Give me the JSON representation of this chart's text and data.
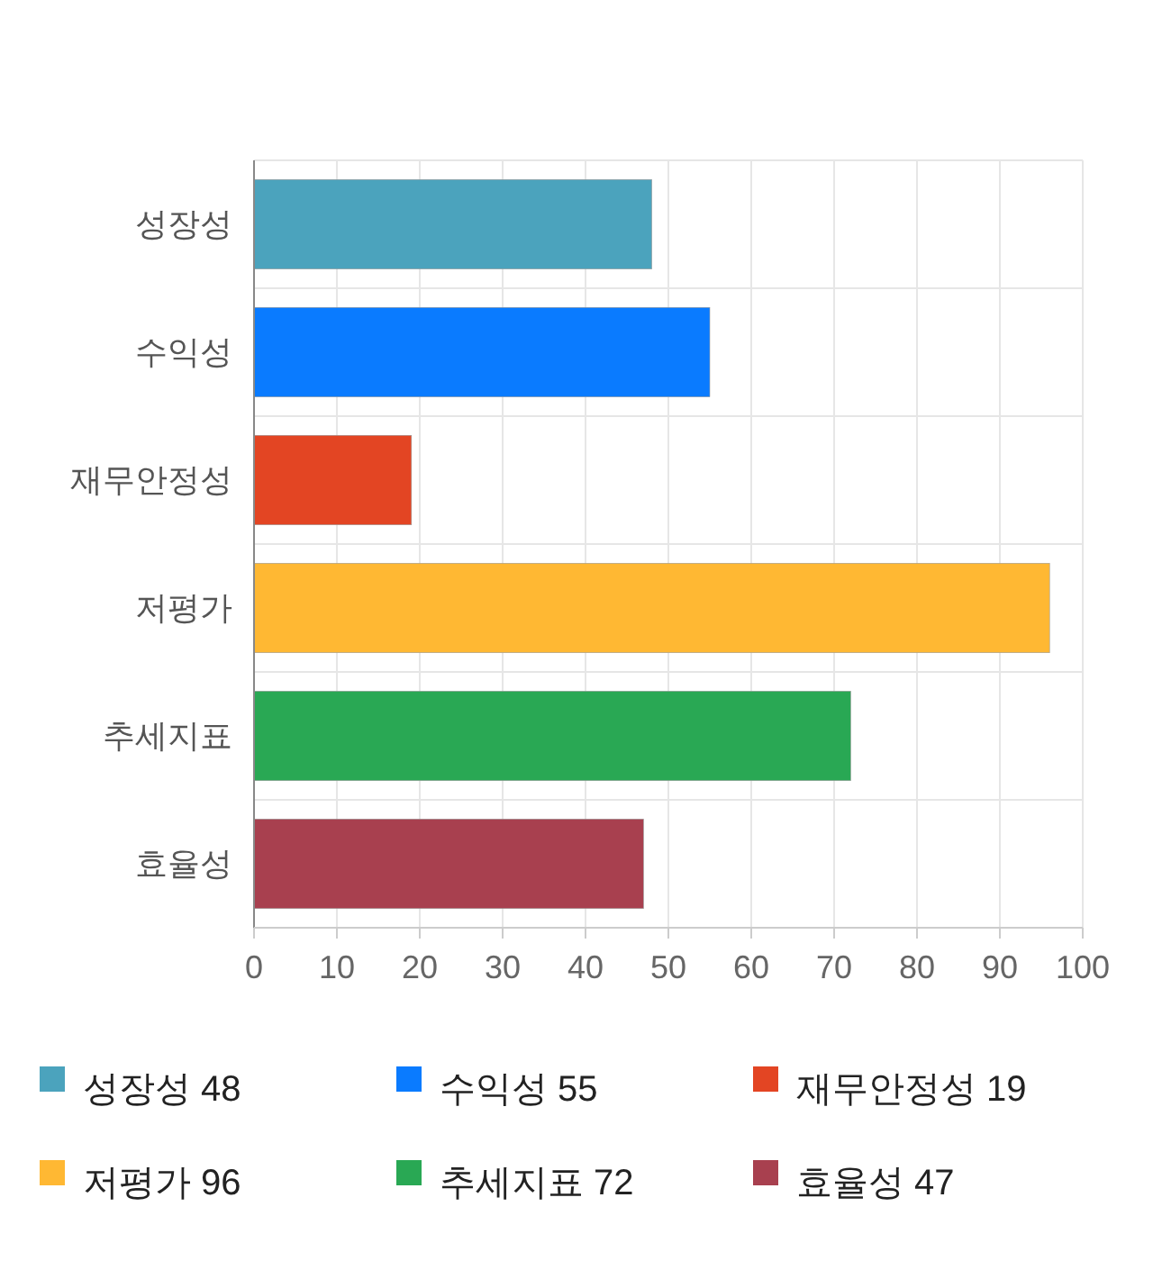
{
  "chart_data": {
    "type": "bar",
    "orientation": "horizontal",
    "stacked": true,
    "categories": [
      "성장성",
      "수익성",
      "재무안정성",
      "저평가",
      "추세지표",
      "효율성"
    ],
    "series": [
      {
        "name": "성장성 48",
        "color": "#4ba3bd",
        "values": [
          48,
          null,
          null,
          null,
          null,
          null
        ]
      },
      {
        "name": "수익성 55",
        "color": "#0a7bff",
        "values": [
          null,
          55,
          null,
          null,
          null,
          null
        ]
      },
      {
        "name": "재무안정성 19",
        "color": "#e34523",
        "values": [
          null,
          null,
          19,
          null,
          null,
          null
        ]
      },
      {
        "name": "저평가 96",
        "color": "#ffb833",
        "values": [
          null,
          null,
          null,
          96,
          null,
          null
        ]
      },
      {
        "name": "추세지표 72",
        "color": "#29a854",
        "values": [
          null,
          null,
          null,
          null,
          72,
          null
        ]
      },
      {
        "name": "효율성 47",
        "color": "#a8404f",
        "values": [
          null,
          null,
          null,
          null,
          null,
          47
        ]
      }
    ],
    "xlim": [
      0,
      100
    ],
    "xticks": [
      0,
      10,
      20,
      30,
      40,
      50,
      60,
      70,
      80,
      90,
      100
    ],
    "grid": true,
    "legend": "bottom"
  }
}
